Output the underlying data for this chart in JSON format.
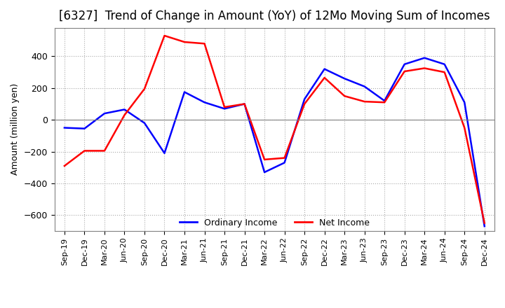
{
  "title": "[6327]  Trend of Change in Amount (YoY) of 12Mo Moving Sum of Incomes",
  "ylabel": "Amount (million yen)",
  "xlabels": [
    "Sep-19",
    "Dec-19",
    "Mar-20",
    "Jun-20",
    "Sep-20",
    "Dec-20",
    "Mar-21",
    "Jun-21",
    "Sep-21",
    "Dec-21",
    "Mar-22",
    "Jun-22",
    "Sep-22",
    "Dec-22",
    "Mar-23",
    "Jun-23",
    "Sep-23",
    "Dec-23",
    "Mar-24",
    "Jun-24",
    "Sep-24",
    "Dec-24"
  ],
  "ordinary_income": [
    -50,
    -55,
    40,
    65,
    -20,
    -210,
    175,
    110,
    70,
    100,
    -330,
    -270,
    130,
    320,
    260,
    210,
    120,
    350,
    390,
    350,
    110,
    -670
  ],
  "net_income": [
    -290,
    -195,
    -195,
    30,
    195,
    530,
    490,
    480,
    80,
    100,
    -250,
    -240,
    100,
    265,
    150,
    115,
    110,
    305,
    325,
    300,
    -50,
    -650
  ],
  "ordinary_color": "#0000ff",
  "net_color": "#ff0000",
  "ylim": [
    -700,
    580
  ],
  "yticks": [
    -600,
    -400,
    -200,
    0,
    200,
    400
  ],
  "background_color": "#ffffff",
  "grid_color": "#aaaaaa",
  "title_fontsize": 12,
  "legend_labels": [
    "Ordinary Income",
    "Net Income"
  ]
}
